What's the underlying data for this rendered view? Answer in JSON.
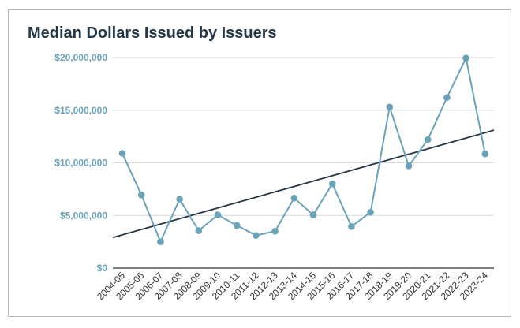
{
  "chart_data": {
    "type": "line",
    "title": "Median Dollars Issued by Issuers",
    "xlabel": "",
    "ylabel": "",
    "ylim": [
      0,
      20000000
    ],
    "yticks": [
      0,
      5000000,
      10000000,
      15000000,
      20000000
    ],
    "ytick_labels": [
      "$0",
      "$5,000,000",
      "$10,000,000",
      "$15,000,000",
      "$20,000,000"
    ],
    "categories": [
      "2004-05",
      "2005-06",
      "2006-07",
      "2007-08",
      "2008-09",
      "2009-10",
      "2010-11",
      "2011-12",
      "2012-13",
      "2013-14",
      "2014-15",
      "2015-16",
      "2016-17",
      "2017-18",
      "2018-19",
      "2019-20",
      "2020-21",
      "2021-22",
      "2022-23",
      "2023-24"
    ],
    "series": [
      {
        "name": "Median Dollars Issued",
        "color": "#6aa3b8",
        "values": [
          10900000,
          6950000,
          2500000,
          6550000,
          3550000,
          5050000,
          4050000,
          3100000,
          3500000,
          6650000,
          5050000,
          8000000,
          3950000,
          5300000,
          15300000,
          9700000,
          12200000,
          16200000,
          19950000,
          10850000
        ]
      }
    ],
    "trendline": {
      "name": "Trendline",
      "color": "#253746",
      "start_value": 2900000,
      "end_value": 13100000
    },
    "grid": true,
    "legend": "none"
  }
}
